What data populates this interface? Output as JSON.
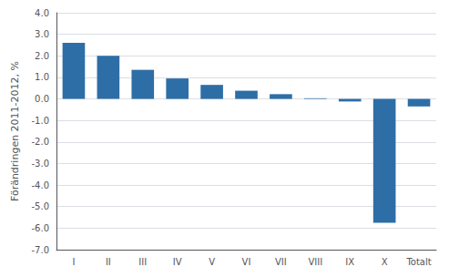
{
  "chart_data": {
    "type": "bar",
    "categories": [
      "I",
      "II",
      "III",
      "IV",
      "V",
      "VI",
      "VII",
      "VIII",
      "IX",
      "X",
      "Totalt"
    ],
    "values": [
      2.6,
      2.0,
      1.35,
      0.95,
      0.65,
      0.38,
      0.22,
      0.03,
      -0.12,
      -5.75,
      -0.35
    ],
    "color": "#2E6EA6",
    "ylabel": "Förändringen 2011-2012, %",
    "ylim": [
      -7.0,
      4.0
    ],
    "yticks": [
      {
        "value": -7.0,
        "label": "-7.0"
      },
      {
        "value": -6.0,
        "label": "-6.0"
      },
      {
        "value": -5.0,
        "label": "-5.0"
      },
      {
        "value": -4.0,
        "label": "-4.0"
      },
      {
        "value": -3.0,
        "label": "-3.0"
      },
      {
        "value": -2.0,
        "label": "-2.0"
      },
      {
        "value": -1.0,
        "label": "-1.0"
      },
      {
        "value": 0.0,
        "label": "0.0"
      },
      {
        "value": 1.0,
        "label": "1.0"
      },
      {
        "value": 2.0,
        "label": "2.0"
      },
      {
        "value": 3.0,
        "label": "3.0"
      },
      {
        "value": 4.0,
        "label": "4.0"
      }
    ],
    "grid": true
  }
}
